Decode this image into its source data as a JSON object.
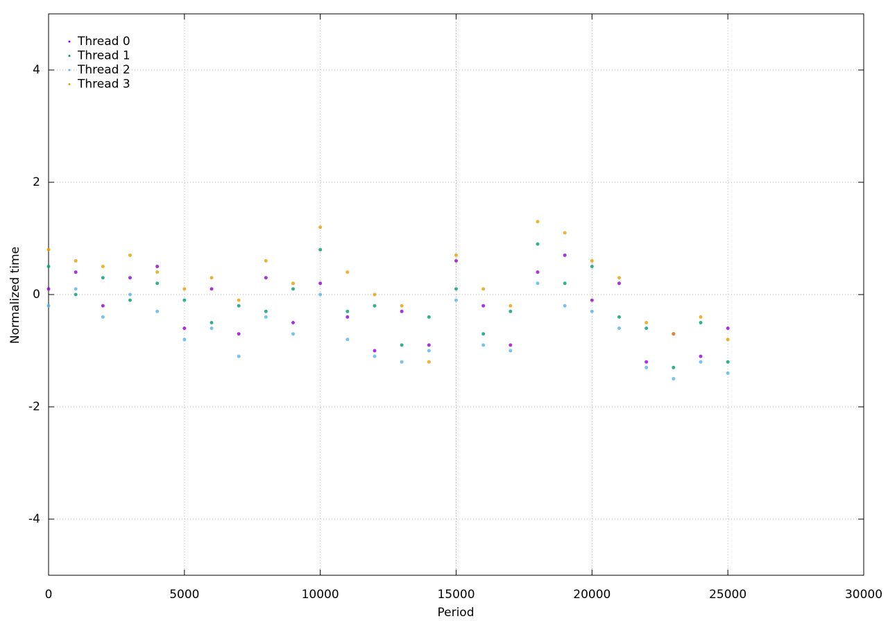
{
  "chart_data": {
    "type": "scatter",
    "xlabel": "Period",
    "ylabel": "Normalized time",
    "x": [
      0,
      1000,
      2000,
      3000,
      4000,
      5000,
      6000,
      7000,
      8000,
      9000,
      10000,
      11000,
      12000,
      13000,
      14000,
      15000,
      16000,
      17000,
      18000,
      19000,
      20000,
      21000,
      22000,
      23000,
      24000,
      25000
    ],
    "series": [
      {
        "name": "Thread 0",
        "color": "#9400d3",
        "values": [
          0.1,
          0.4,
          -0.2,
          0.3,
          0.5,
          -0.6,
          0.1,
          -0.7,
          0.3,
          -0.5,
          0.2,
          -0.4,
          -1.0,
          -0.3,
          -0.9,
          0.6,
          -0.2,
          -0.9,
          0.4,
          0.7,
          -0.1,
          0.2,
          -1.2,
          -0.7,
          -1.1,
          -0.6
        ]
      },
      {
        "name": "Thread 1",
        "color": "#009e73",
        "values": [
          0.5,
          0.0,
          0.3,
          -0.1,
          0.2,
          -0.1,
          -0.5,
          -0.2,
          -0.3,
          0.1,
          0.8,
          -0.3,
          -0.2,
          -0.9,
          -0.4,
          0.1,
          -0.7,
          -0.3,
          0.9,
          0.2,
          0.5,
          -0.4,
          -0.6,
          -1.3,
          -0.5,
          -1.2
        ]
      },
      {
        "name": "Thread 2",
        "color": "#56b4e9",
        "values": [
          -0.2,
          0.1,
          -0.4,
          0.0,
          -0.3,
          -0.8,
          -0.6,
          -1.1,
          -0.4,
          -0.7,
          0.0,
          -0.8,
          -1.1,
          -1.2,
          -1.0,
          -0.1,
          -0.9,
          -1.0,
          0.2,
          -0.2,
          -0.3,
          -0.6,
          -1.3,
          -1.5,
          -1.2,
          -1.4
        ]
      },
      {
        "name": "Thread 3",
        "color": "#e69f00",
        "values": [
          0.8,
          0.6,
          0.5,
          0.7,
          0.4,
          0.1,
          0.3,
          -0.1,
          0.6,
          0.2,
          1.2,
          0.4,
          0.0,
          -0.2,
          -1.2,
          0.7,
          0.1,
          -0.2,
          1.3,
          1.1,
          0.6,
          0.3,
          -0.5,
          -0.7,
          -0.4,
          -0.8
        ]
      }
    ],
    "xlim": [
      0,
      30000
    ],
    "xticks": [
      0,
      5000,
      10000,
      15000,
      20000,
      25000,
      30000
    ],
    "ylim": [
      -5,
      5
    ],
    "yticks": [
      -4,
      -2,
      0,
      2,
      4
    ],
    "grid": true,
    "legend": "top-left"
  }
}
